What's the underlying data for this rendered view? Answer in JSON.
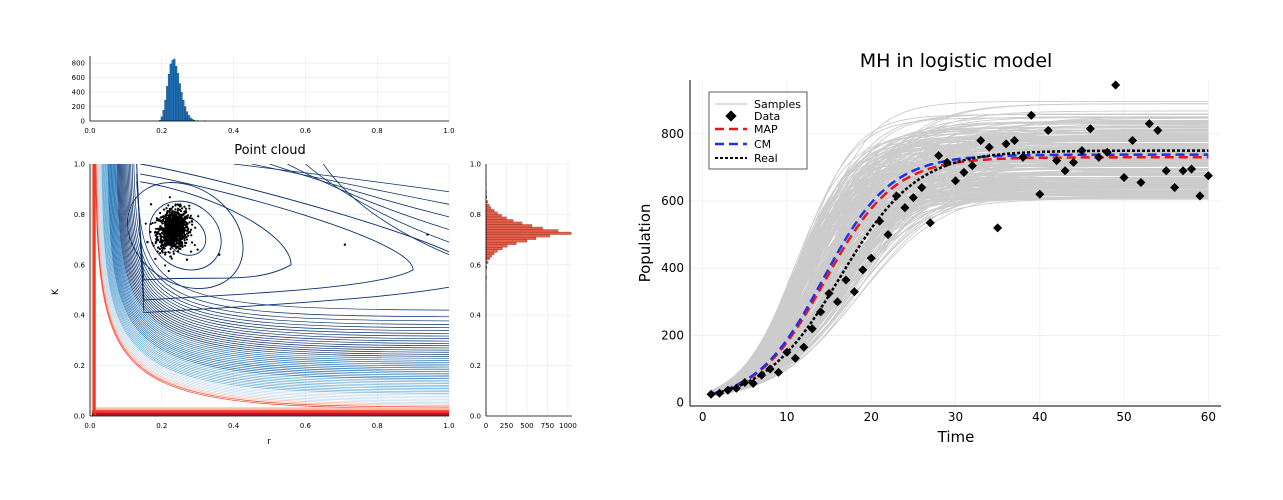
{
  "chart_data": [
    {
      "type": "histogram",
      "panel": "marginal r",
      "xlim": [
        0,
        1
      ],
      "ylim": [
        0,
        900
      ],
      "x_ticks": [
        "0.0",
        "0.2",
        "0.4",
        "0.6",
        "0.8",
        "1.0"
      ],
      "y_ticks": [
        "0",
        "200",
        "400",
        "600",
        "800"
      ],
      "bar_color": "#1f6fb4",
      "bins": [
        [
          0.195,
          10
        ],
        [
          0.2,
          60
        ],
        [
          0.205,
          150
        ],
        [
          0.21,
          290
        ],
        [
          0.215,
          480
        ],
        [
          0.22,
          650
        ],
        [
          0.225,
          790
        ],
        [
          0.23,
          840
        ],
        [
          0.235,
          860
        ],
        [
          0.24,
          760
        ],
        [
          0.245,
          660
        ],
        [
          0.25,
          520
        ],
        [
          0.255,
          400
        ],
        [
          0.26,
          290
        ],
        [
          0.265,
          200
        ],
        [
          0.27,
          130
        ],
        [
          0.275,
          80
        ],
        [
          0.28,
          45
        ],
        [
          0.285,
          25
        ],
        [
          0.29,
          12
        ],
        [
          0.3,
          6
        ],
        [
          0.32,
          3
        ]
      ]
    },
    {
      "type": "contour+scatter",
      "title": "Point cloud",
      "xlabel": "r",
      "ylabel": "K",
      "xlim": [
        0,
        1
      ],
      "ylim": [
        0,
        1
      ],
      "x_ticks": [
        "0.0",
        "0.2",
        "0.4",
        "0.6",
        "0.8",
        "1.0"
      ],
      "y_ticks": [
        "0.0",
        "0.2",
        "0.4",
        "0.6",
        "0.8",
        "1.0"
      ],
      "contour_colors": [
        "#08306b",
        "#2171b5",
        "#6baed6",
        "#c6dbef",
        "#fcbba1",
        "#ef3b2c",
        "#b2182b"
      ],
      "point_color": "#000000",
      "cloud_center": [
        0.232,
        0.74
      ],
      "cloud_spread": [
        0.022,
        0.04
      ],
      "outliers": [
        [
          0.17,
          0.84
        ],
        [
          0.19,
          0.78
        ],
        [
          0.3,
          0.66
        ],
        [
          0.36,
          0.64
        ],
        [
          0.71,
          0.68
        ],
        [
          0.94,
          0.72
        ],
        [
          0.27,
          0.62
        ],
        [
          0.16,
          0.69
        ]
      ]
    },
    {
      "type": "histogram",
      "orientation": "horizontal",
      "panel": "marginal K",
      "ylim": [
        0,
        1
      ],
      "xlim": [
        0,
        1050
      ],
      "x_ticks": [
        "0",
        "250",
        "500",
        "750",
        "1000"
      ],
      "y_ticks": [
        "0.0",
        "0.2",
        "0.4",
        "0.6",
        "0.8",
        "1.0"
      ],
      "bar_color": "#e8604c",
      "bins": [
        [
          0.51,
          4
        ],
        [
          0.55,
          6
        ],
        [
          0.59,
          10
        ],
        [
          0.61,
          25
        ],
        [
          0.625,
          45
        ],
        [
          0.635,
          70
        ],
        [
          0.645,
          100
        ],
        [
          0.655,
          140
        ],
        [
          0.665,
          200
        ],
        [
          0.675,
          260
        ],
        [
          0.685,
          370
        ],
        [
          0.695,
          500
        ],
        [
          0.705,
          610
        ],
        [
          0.715,
          780
        ],
        [
          0.725,
          1040
        ],
        [
          0.735,
          880
        ],
        [
          0.745,
          690
        ],
        [
          0.755,
          560
        ],
        [
          0.765,
          440
        ],
        [
          0.775,
          330
        ],
        [
          0.785,
          250
        ],
        [
          0.795,
          190
        ],
        [
          0.805,
          140
        ],
        [
          0.815,
          100
        ],
        [
          0.825,
          60
        ],
        [
          0.835,
          40
        ],
        [
          0.85,
          20
        ],
        [
          0.87,
          10
        ],
        [
          0.89,
          6
        ],
        [
          0.92,
          3
        ],
        [
          0.95,
          2
        ]
      ]
    },
    {
      "type": "line+scatter",
      "title": "MH in logistic model",
      "xlabel": "Time",
      "ylabel": "Population",
      "xlim": [
        -1.5,
        61.5
      ],
      "ylim": [
        -10,
        960
      ],
      "x_ticks": [
        "0",
        "10",
        "20",
        "30",
        "40",
        "50",
        "60"
      ],
      "y_ticks": [
        "0",
        "200",
        "400",
        "600",
        "800"
      ],
      "legend": [
        "Samples",
        "Data",
        "MAP",
        "CM",
        "Real"
      ],
      "legend_position": "top-left",
      "colors": {
        "samples": "#cccccc",
        "data": "#000000",
        "map": "#e8161b",
        "cm": "#1f32e6",
        "real": "#000000"
      },
      "series": [
        {
          "name": "MAP",
          "model": "logistic",
          "r": 0.245,
          "K": 730,
          "N0": 20,
          "style": "dashed"
        },
        {
          "name": "CM",
          "model": "logistic",
          "r": 0.25,
          "K": 738,
          "N0": 20,
          "style": "dashed"
        },
        {
          "name": "Real",
          "model": "logistic",
          "r": 0.22,
          "K": 750,
          "N0": 20,
          "style": "dotted"
        }
      ],
      "samples_K_range": [
        605,
        905
      ],
      "samples_r_range": [
        0.19,
        0.33
      ],
      "data_points": [
        [
          1,
          25
        ],
        [
          2,
          28
        ],
        [
          3,
          37
        ],
        [
          4,
          43
        ],
        [
          5,
          60
        ],
        [
          6,
          57
        ],
        [
          7,
          82
        ],
        [
          8,
          100
        ],
        [
          9,
          90
        ],
        [
          10,
          150
        ],
        [
          11,
          132
        ],
        [
          12,
          165
        ],
        [
          13,
          220
        ],
        [
          14,
          270
        ],
        [
          15,
          325
        ],
        [
          16,
          300
        ],
        [
          17,
          365
        ],
        [
          18,
          330
        ],
        [
          19,
          395
        ],
        [
          20,
          430
        ],
        [
          21,
          540
        ],
        [
          22,
          500
        ],
        [
          23,
          615
        ],
        [
          24,
          580
        ],
        [
          25,
          610
        ],
        [
          26,
          640
        ],
        [
          27,
          535
        ],
        [
          28,
          735
        ],
        [
          29,
          715
        ],
        [
          30,
          660
        ],
        [
          31,
          685
        ],
        [
          32,
          705
        ],
        [
          33,
          780
        ],
        [
          34,
          760
        ],
        [
          35,
          520
        ],
        [
          36,
          770
        ],
        [
          37,
          780
        ],
        [
          38,
          730
        ],
        [
          39,
          855
        ],
        [
          40,
          620
        ],
        [
          41,
          810
        ],
        [
          42,
          720
        ],
        [
          43,
          690
        ],
        [
          44,
          715
        ],
        [
          45,
          750
        ],
        [
          46,
          815
        ],
        [
          47,
          730
        ],
        [
          48,
          745
        ],
        [
          49,
          945
        ],
        [
          50,
          670
        ],
        [
          51,
          780
        ],
        [
          52,
          655
        ],
        [
          53,
          830
        ],
        [
          54,
          810
        ],
        [
          55,
          690
        ],
        [
          56,
          640
        ],
        [
          57,
          690
        ],
        [
          58,
          695
        ],
        [
          59,
          615
        ],
        [
          60,
          675
        ]
      ]
    }
  ]
}
